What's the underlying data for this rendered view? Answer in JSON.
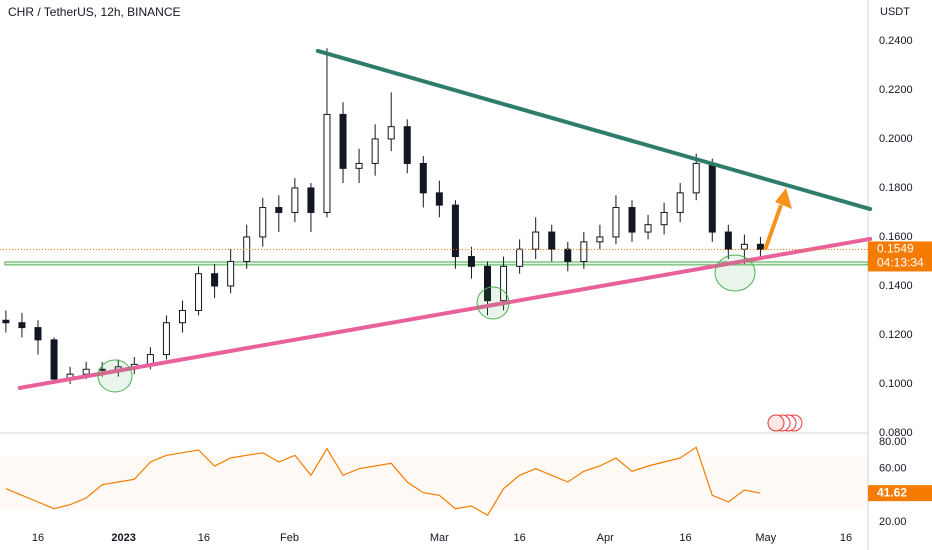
{
  "chart_data": [
    {
      "type": "candlestick",
      "title": "CHR / TetherUS, 12h, BINANCE",
      "y_unit": "USDT",
      "countdown": "04:13:34",
      "x": [
        10,
        13,
        16,
        19,
        22,
        25,
        28,
        31,
        34,
        37,
        40,
        43,
        46,
        49,
        52,
        55,
        58,
        61,
        64,
        67,
        70,
        73,
        76,
        79,
        82,
        85,
        88,
        91,
        94,
        97,
        100,
        103,
        106,
        109,
        112,
        115,
        118,
        121,
        124,
        127,
        130,
        133,
        136,
        139,
        142,
        145,
        148,
        151
      ],
      "open": [
        0.126,
        0.125,
        0.123,
        0.118,
        0.102,
        0.104,
        0.106,
        0.106,
        0.107,
        0.108,
        0.112,
        0.125,
        0.13,
        0.145,
        0.14,
        0.15,
        0.16,
        0.172,
        0.17,
        0.18,
        0.17,
        0.21,
        0.188,
        0.19,
        0.2,
        0.205,
        0.19,
        0.178,
        0.173,
        0.152,
        0.148,
        0.134,
        0.148,
        0.155,
        0.162,
        0.155,
        0.15,
        0.158,
        0.16,
        0.172,
        0.162,
        0.165,
        0.17,
        0.178,
        0.19,
        0.162,
        0.155,
        0.157
      ],
      "high": [
        0.13,
        0.129,
        0.126,
        0.119,
        0.107,
        0.109,
        0.109,
        0.11,
        0.111,
        0.115,
        0.128,
        0.134,
        0.148,
        0.149,
        0.155,
        0.165,
        0.176,
        0.177,
        0.184,
        0.182,
        0.237,
        0.215,
        0.196,
        0.206,
        0.219,
        0.208,
        0.193,
        0.183,
        0.175,
        0.156,
        0.15,
        0.152,
        0.159,
        0.168,
        0.165,
        0.158,
        0.162,
        0.165,
        0.177,
        0.175,
        0.169,
        0.174,
        0.182,
        0.194,
        0.192,
        0.165,
        0.161,
        0.16
      ],
      "low": [
        0.121,
        0.119,
        0.112,
        0.1,
        0.1,
        0.102,
        0.103,
        0.103,
        0.104,
        0.106,
        0.11,
        0.121,
        0.128,
        0.135,
        0.137,
        0.147,
        0.156,
        0.162,
        0.166,
        0.162,
        0.168,
        0.182,
        0.182,
        0.185,
        0.195,
        0.186,
        0.172,
        0.168,
        0.147,
        0.143,
        0.128,
        0.13,
        0.145,
        0.151,
        0.15,
        0.146,
        0.147,
        0.155,
        0.157,
        0.158,
        0.159,
        0.161,
        0.166,
        0.175,
        0.158,
        0.151,
        0.149,
        0.152
      ],
      "close": [
        0.125,
        0.123,
        0.118,
        0.102,
        0.104,
        0.106,
        0.106,
        0.107,
        0.108,
        0.112,
        0.125,
        0.13,
        0.145,
        0.14,
        0.15,
        0.16,
        0.172,
        0.17,
        0.18,
        0.17,
        0.21,
        0.188,
        0.19,
        0.2,
        0.205,
        0.19,
        0.178,
        0.173,
        0.152,
        0.148,
        0.134,
        0.148,
        0.155,
        0.162,
        0.155,
        0.15,
        0.158,
        0.16,
        0.172,
        0.162,
        0.165,
        0.17,
        0.178,
        0.19,
        0.162,
        0.155,
        0.157,
        0.1549
      ],
      "up_color": "#ffffff",
      "down_color": "#131722",
      "price_line_color": "#f57c00",
      "xlim": [
        8.9,
        171.1
      ],
      "xticks": [
        16,
        {
          "value": 32,
          "label": "2023"
        },
        {
          "value": 47,
          "label": "16"
        },
        {
          "value": 63,
          "label": "Feb"
        },
        {
          "value": 91,
          "label": "Mar"
        },
        {
          "value": 106,
          "label": "16"
        },
        {
          "value": 122,
          "label": "Apr"
        },
        {
          "value": 137,
          "label": "16"
        },
        {
          "value": 152,
          "label": "May"
        },
        {
          "value": 167,
          "label": "16"
        }
      ],
      "ylim": [
        0.0804,
        0.2567
      ],
      "yticks": [
        {
          "value": 0.08,
          "label": "0.0800"
        },
        {
          "value": 0.1,
          "label": "0.1000"
        },
        {
          "value": 0.12,
          "label": "0.1200"
        },
        {
          "value": 0.14,
          "label": "0.1400"
        },
        {
          "value": 0.16,
          "label": "0.1600"
        },
        {
          "value": 0.18,
          "label": "0.1800"
        },
        {
          "value": 0.2,
          "label": "0.2000"
        },
        {
          "value": 0.22,
          "label": "0.2200"
        },
        {
          "value": 0.24,
          "label": "0.2400"
        }
      ],
      "grid": true,
      "trendlines": [
        {
          "x": [
            68.3,
            171.5
          ],
          "y": [
            0.2359,
            0.1714
          ],
          "color": "#2e7d6b"
        },
        {
          "x": [
            12.6,
            171.5
          ],
          "y": [
            0.0984,
            0.1592
          ],
          "color": "#e8619a"
        }
      ],
      "zone": {
        "y": [
          0.1486,
          0.1498
        ],
        "color": "#4caf50"
      }
    },
    {
      "type": "line",
      "values": [
        45,
        40,
        35,
        30,
        33,
        38,
        48,
        50,
        52,
        65,
        70,
        72,
        74,
        62,
        68,
        70,
        72,
        65,
        70,
        55,
        75,
        55,
        60,
        62,
        64,
        50,
        42,
        40,
        30,
        32,
        25,
        45,
        55,
        60,
        55,
        50,
        58,
        62,
        68,
        58,
        62,
        65,
        68,
        76,
        40,
        35,
        44,
        41.62
      ],
      "color": "#f57c00",
      "ylim": [
        14,
        85.25
      ],
      "yticks": [
        {
          "value": 20,
          "label": "20.00"
        },
        {
          "value": 60,
          "label": "60.00"
        },
        {
          "value": 80,
          "label": "80.00"
        }
      ],
      "levels": [
        70,
        50,
        30
      ]
    }
  ]
}
